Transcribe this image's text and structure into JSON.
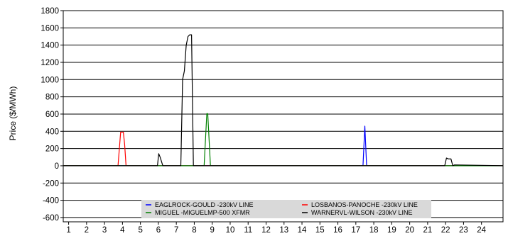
{
  "chart_data": {
    "type": "line",
    "title": "",
    "xlabel": "",
    "ylabel": "Price ($/MWh)",
    "xlim": [
      0.7,
      25.2
    ],
    "ylim": [
      -650,
      1800
    ],
    "x_ticks": [
      1,
      2,
      3,
      4,
      5,
      6,
      7,
      8,
      9,
      10,
      11,
      12,
      13,
      14,
      15,
      16,
      17,
      18,
      19,
      20,
      21,
      22,
      23,
      24
    ],
    "y_ticks": [
      1800,
      1600,
      1400,
      1200,
      1000,
      800,
      600,
      400,
      200,
      0,
      -200,
      -400,
      -600
    ],
    "grid": "horizontal",
    "legend_position": "bottom-center",
    "series": [
      {
        "name": "EAGLROCK-GOULD  -230kV LINE",
        "color": "#0000ff",
        "points": [
          [
            0.7,
            0
          ],
          [
            17.4,
            0
          ],
          [
            17.5,
            460
          ],
          [
            17.6,
            0
          ],
          [
            25.2,
            0
          ]
        ]
      },
      {
        "name": "LOSBANOS-PANOCHE -230kV LINE",
        "color": "#ff0000",
        "points": [
          [
            0.7,
            0
          ],
          [
            3.75,
            0
          ],
          [
            3.9,
            390
          ],
          [
            4.05,
            390
          ],
          [
            4.12,
            250
          ],
          [
            4.2,
            0
          ],
          [
            25.2,
            0
          ]
        ]
      },
      {
        "name": "MIGUEL  -MIGUELMP-500 XFMR",
        "color": "#008000",
        "points": [
          [
            0.7,
            0
          ],
          [
            8.55,
            0
          ],
          [
            8.7,
            605
          ],
          [
            8.75,
            605
          ],
          [
            8.9,
            0
          ],
          [
            25.2,
            0
          ]
        ]
      },
      {
        "name": "WARNERVL-WILSON  -230kV LINE",
        "color": "#000000",
        "points": [
          [
            0.7,
            0
          ],
          [
            5.95,
            0
          ],
          [
            6.02,
            140
          ],
          [
            6.1,
            100
          ],
          [
            6.25,
            0
          ],
          [
            7.25,
            0
          ],
          [
            7.35,
            1000
          ],
          [
            7.45,
            1100
          ],
          [
            7.55,
            1400
          ],
          [
            7.65,
            1500
          ],
          [
            7.75,
            1520
          ],
          [
            7.85,
            1520
          ],
          [
            7.95,
            0
          ],
          [
            21.95,
            0
          ],
          [
            22.05,
            90
          ],
          [
            22.15,
            80
          ],
          [
            22.3,
            80
          ],
          [
            22.4,
            0
          ],
          [
            22.5,
            10
          ],
          [
            25.2,
            0
          ]
        ]
      }
    ]
  }
}
